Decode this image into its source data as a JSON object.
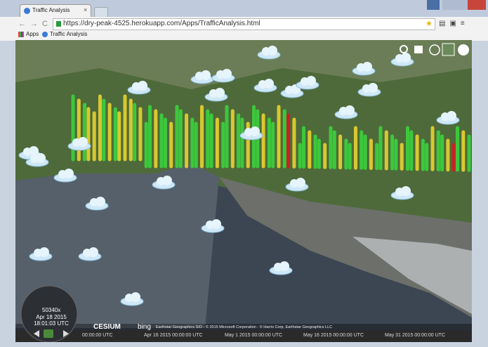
{
  "browser": {
    "tab_title": "Traffic Analysis",
    "url": "https://dry-peak-4525.herokuapp.com/Apps/TrafficAnalysis.html",
    "bookmarks": [
      "Apps",
      "Traffic Analysis"
    ]
  },
  "clock": {
    "speed": "50340x",
    "date": "Apr 18 2015",
    "time": "18:01:03 UTC"
  },
  "credits": {
    "logo": "CESIUM",
    "bing": "bing",
    "text": "Earthstar Geographics SIO - © 2015 Microsoft Corporation - © Harris Corp, Earthstar Geographics LLC"
  },
  "timeline": {
    "labels": [
      "00:00:00 UTC",
      "Apr 16 2015 00:00:00 UTC",
      "May 1 2015 00:00:00 UTC",
      "May 16 2015 00:00:00 UTC",
      "May 31 2015 00:00:00 UTC"
    ]
  }
}
